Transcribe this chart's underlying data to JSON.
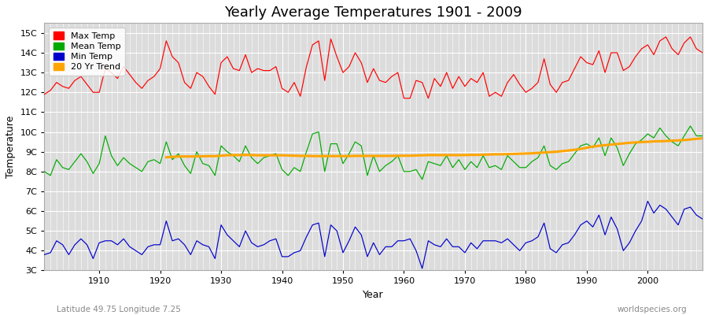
{
  "title": "Yearly Average Temperatures 1901 - 2009",
  "xlabel": "Year",
  "ylabel": "Temperature",
  "footnote_left": "Latitude 49.75 Longitude 7.25",
  "footnote_right": "worldspecies.org",
  "years": [
    1901,
    1902,
    1903,
    1904,
    1905,
    1906,
    1907,
    1908,
    1909,
    1910,
    1911,
    1912,
    1913,
    1914,
    1915,
    1916,
    1917,
    1918,
    1919,
    1920,
    1921,
    1922,
    1923,
    1924,
    1925,
    1926,
    1927,
    1928,
    1929,
    1930,
    1931,
    1932,
    1933,
    1934,
    1935,
    1936,
    1937,
    1938,
    1939,
    1940,
    1941,
    1942,
    1943,
    1944,
    1945,
    1946,
    1947,
    1948,
    1949,
    1950,
    1951,
    1952,
    1953,
    1954,
    1955,
    1956,
    1957,
    1958,
    1959,
    1960,
    1961,
    1962,
    1963,
    1964,
    1965,
    1966,
    1967,
    1968,
    1969,
    1970,
    1971,
    1972,
    1973,
    1974,
    1975,
    1976,
    1977,
    1978,
    1979,
    1980,
    1981,
    1982,
    1983,
    1984,
    1985,
    1986,
    1987,
    1988,
    1989,
    1990,
    1991,
    1992,
    1993,
    1994,
    1995,
    1996,
    1997,
    1998,
    1999,
    2000,
    2001,
    2002,
    2003,
    2004,
    2005,
    2006,
    2007,
    2008,
    2009
  ],
  "max_temp": [
    11.9,
    12.1,
    12.5,
    12.3,
    12.2,
    12.6,
    12.8,
    12.4,
    12.0,
    12.0,
    13.2,
    13.0,
    12.7,
    13.3,
    12.9,
    12.5,
    12.2,
    12.6,
    12.8,
    13.2,
    14.6,
    13.8,
    13.5,
    12.5,
    12.2,
    13.0,
    12.8,
    12.3,
    11.9,
    13.5,
    13.8,
    13.2,
    13.1,
    13.9,
    13.0,
    13.2,
    13.1,
    13.1,
    13.3,
    12.2,
    12.0,
    12.5,
    11.8,
    13.3,
    14.4,
    14.6,
    12.6,
    14.7,
    13.8,
    13.0,
    13.3,
    14.0,
    13.5,
    12.5,
    13.2,
    12.6,
    12.5,
    12.8,
    13.0,
    11.7,
    11.7,
    12.6,
    12.5,
    11.7,
    12.7,
    12.3,
    13.0,
    12.2,
    12.8,
    12.3,
    12.7,
    12.5,
    13.0,
    11.8,
    12.0,
    11.8,
    12.5,
    12.9,
    12.4,
    12.0,
    12.2,
    12.5,
    13.7,
    12.4,
    12.0,
    12.5,
    12.6,
    13.2,
    13.8,
    13.5,
    13.4,
    14.1,
    13.0,
    14.0,
    14.0,
    13.1,
    13.3,
    13.8,
    14.2,
    14.4,
    13.9,
    14.6,
    14.8,
    14.2,
    13.9,
    14.5,
    14.8,
    14.2,
    14.0
  ],
  "mean_temp": [
    8.0,
    7.8,
    8.6,
    8.2,
    8.1,
    8.5,
    8.9,
    8.5,
    7.9,
    8.4,
    9.8,
    8.8,
    8.3,
    8.7,
    8.4,
    8.2,
    8.0,
    8.5,
    8.6,
    8.4,
    9.5,
    8.6,
    8.9,
    8.3,
    7.9,
    9.0,
    8.4,
    8.3,
    7.8,
    9.3,
    9.0,
    8.8,
    8.5,
    9.3,
    8.7,
    8.4,
    8.7,
    8.8,
    8.9,
    8.1,
    7.8,
    8.2,
    8.0,
    9.0,
    9.9,
    10.0,
    8.0,
    9.4,
    9.4,
    8.4,
    8.9,
    9.5,
    9.3,
    7.8,
    8.8,
    8.0,
    8.3,
    8.5,
    8.8,
    8.0,
    8.0,
    8.1,
    7.6,
    8.5,
    8.4,
    8.3,
    8.8,
    8.2,
    8.6,
    8.1,
    8.5,
    8.2,
    8.8,
    8.2,
    8.3,
    8.1,
    8.8,
    8.5,
    8.2,
    8.2,
    8.5,
    8.7,
    9.3,
    8.3,
    8.1,
    8.4,
    8.5,
    8.9,
    9.3,
    9.4,
    9.2,
    9.7,
    8.8,
    9.7,
    9.2,
    8.3,
    8.9,
    9.4,
    9.6,
    9.9,
    9.7,
    10.2,
    9.8,
    9.5,
    9.3,
    9.8,
    10.3,
    9.8,
    9.8
  ],
  "min_temp": [
    3.8,
    3.9,
    4.5,
    4.3,
    3.8,
    4.3,
    4.6,
    4.3,
    3.6,
    4.4,
    4.5,
    4.5,
    4.3,
    4.6,
    4.2,
    4.0,
    3.8,
    4.2,
    4.3,
    4.3,
    5.5,
    4.5,
    4.6,
    4.3,
    3.8,
    4.5,
    4.3,
    4.2,
    3.6,
    5.3,
    4.8,
    4.5,
    4.2,
    5.0,
    4.4,
    4.2,
    4.3,
    4.5,
    4.6,
    3.7,
    3.7,
    3.9,
    4.0,
    4.7,
    5.3,
    5.4,
    3.7,
    5.3,
    5.0,
    3.9,
    4.5,
    5.2,
    4.8,
    3.7,
    4.4,
    3.8,
    4.2,
    4.2,
    4.5,
    4.5,
    4.6,
    4.0,
    3.1,
    4.5,
    4.3,
    4.2,
    4.6,
    4.2,
    4.2,
    3.9,
    4.4,
    4.1,
    4.5,
    4.5,
    4.5,
    4.4,
    4.6,
    4.3,
    4.0,
    4.4,
    4.5,
    4.7,
    5.4,
    4.1,
    3.9,
    4.3,
    4.4,
    4.8,
    5.3,
    5.5,
    5.2,
    5.8,
    4.8,
    5.7,
    5.1,
    4.0,
    4.4,
    5.0,
    5.5,
    6.5,
    5.9,
    6.3,
    6.1,
    5.7,
    5.3,
    6.1,
    6.2,
    5.8,
    5.6
  ],
  "trend_years": [
    1921,
    1922,
    1923,
    1924,
    1925,
    1926,
    1927,
    1928,
    1929,
    1930,
    1931,
    1932,
    1933,
    1934,
    1935,
    1936,
    1937,
    1938,
    1939,
    1940,
    1941,
    1942,
    1943,
    1944,
    1945,
    1946,
    1947,
    1948,
    1949,
    1950,
    1951,
    1952,
    1953,
    1954,
    1955,
    1956,
    1957,
    1958,
    1959,
    1960,
    1961,
    1962,
    1963,
    1964,
    1965,
    1966,
    1967,
    1968,
    1969,
    1970,
    1971,
    1972,
    1973,
    1974,
    1975,
    1976,
    1977,
    1978,
    1979,
    1980,
    1981,
    1982,
    1983,
    1984,
    1985,
    1986,
    1987,
    1988,
    1989,
    1990,
    1991,
    1992,
    1993,
    1994,
    1995,
    1996,
    1997,
    1998,
    1999,
    2000,
    2001,
    2002,
    2003,
    2004,
    2005,
    2006,
    2007,
    2008,
    2009
  ],
  "trend_vals": [
    8.72,
    8.74,
    8.76,
    8.76,
    8.76,
    8.77,
    8.77,
    8.78,
    8.78,
    8.8,
    8.82,
    8.83,
    8.83,
    8.84,
    8.83,
    8.82,
    8.82,
    8.82,
    8.82,
    8.82,
    8.81,
    8.8,
    8.79,
    8.79,
    8.78,
    8.78,
    8.78,
    8.78,
    8.78,
    8.78,
    8.78,
    8.79,
    8.79,
    8.79,
    8.79,
    8.79,
    8.79,
    8.79,
    8.8,
    8.8,
    8.8,
    8.81,
    8.82,
    8.83,
    8.83,
    8.83,
    8.83,
    8.83,
    8.83,
    8.83,
    8.84,
    8.84,
    8.85,
    8.86,
    8.87,
    8.87,
    8.88,
    8.89,
    8.9,
    8.91,
    8.92,
    8.94,
    8.96,
    8.98,
    9.0,
    9.03,
    9.06,
    9.1,
    9.14,
    9.2,
    9.26,
    9.3,
    9.33,
    9.36,
    9.39,
    9.42,
    9.45,
    9.47,
    9.49,
    9.5,
    9.52,
    9.53,
    9.54,
    9.56,
    9.57,
    9.59,
    9.62,
    9.65,
    9.68
  ],
  "ylim": [
    3,
    15.5
  ],
  "yticks": [
    3,
    4,
    5,
    6,
    7,
    8,
    9,
    10,
    11,
    12,
    13,
    14,
    15
  ],
  "ytick_labels": [
    "3C",
    "4C",
    "5C",
    "6C",
    "7C",
    "8C",
    "9C",
    "10C",
    "11C",
    "12C",
    "13C",
    "14C",
    "15C"
  ],
  "xticks": [
    1910,
    1920,
    1930,
    1940,
    1950,
    1960,
    1970,
    1980,
    1990,
    2000
  ],
  "fig_bg_color": "#ffffff",
  "plot_bg_color": "#dcdcdc",
  "grid_color": "#ffffff",
  "max_color": "#ff0000",
  "mean_color": "#00aa00",
  "min_color": "#0000cc",
  "trend_color": "#ffa500",
  "title_fontsize": 13,
  "axis_label_fontsize": 9,
  "tick_fontsize": 8,
  "legend_fontsize": 8
}
